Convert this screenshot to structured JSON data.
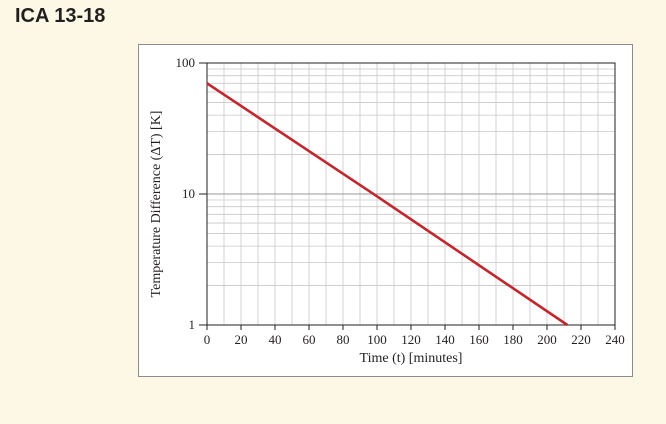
{
  "title": "ICA 13-18",
  "chart_data": {
    "type": "line",
    "title": "",
    "xlabel": "Time (t) [minutes]",
    "ylabel": "Temperature Difference (ΔT) [K]",
    "xlim": [
      0,
      240
    ],
    "ylim": [
      1,
      100
    ],
    "yscale": "log",
    "grid": true,
    "x_ticks": [
      0,
      20,
      40,
      60,
      80,
      100,
      120,
      140,
      160,
      180,
      200,
      220,
      240
    ],
    "y_ticks": [
      1,
      10,
      100
    ],
    "series": [
      {
        "color": "#c1272d",
        "x": [
          0,
          100,
          212
        ],
        "y": [
          70,
          9.6,
          1
        ]
      }
    ]
  }
}
